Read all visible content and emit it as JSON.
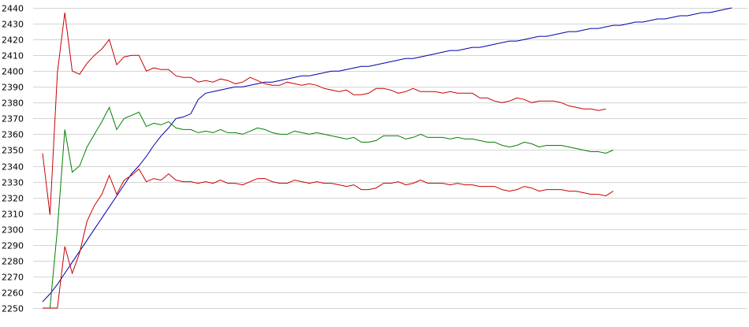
{
  "chart_data": {
    "type": "line",
    "title": "",
    "xlabel": "",
    "ylabel": "",
    "ylim": [
      2250,
      2440
    ],
    "yticks": [
      2440,
      2430,
      2420,
      2410,
      2400,
      2390,
      2380,
      2370,
      2360,
      2350,
      2340,
      2330,
      2320,
      2310,
      2300,
      2290,
      2280,
      2270,
      2260,
      2250
    ],
    "grid": true,
    "legend": "none",
    "series": [
      {
        "color": "#0000aa",
        "values": [
          2254,
          2259,
          2265,
          2272,
          2279,
          2286,
          2293,
          2300,
          2307,
          2314,
          2321,
          2328,
          2335,
          2340,
          2346,
          2353,
          2359,
          2364,
          2370,
          2371,
          2373,
          2382,
          2386,
          2387,
          2388,
          2389,
          2390,
          2390,
          2391,
          2392,
          2393,
          2393,
          2394,
          2395,
          2396,
          2397,
          2397,
          2398,
          2399,
          2400,
          2400,
          2401,
          2402,
          2403,
          2403,
          2404,
          2405,
          2406,
          2407,
          2408,
          2408,
          2409,
          2410,
          2411,
          2412,
          2413,
          2413,
          2414,
          2415,
          2415,
          2416,
          2417,
          2418,
          2419,
          2419,
          2420,
          2421,
          2422,
          2422,
          2423,
          2424,
          2425,
          2425,
          2426,
          2427,
          2427,
          2428,
          2429,
          2429,
          2430,
          2431,
          2431,
          2432,
          2433,
          2433,
          2434,
          2435,
          2435,
          2436,
          2437,
          2437,
          2438,
          2439,
          2440
        ]
      },
      {
        "color": "#cc0000",
        "values": [
          2348,
          2309,
          2399,
          2437,
          2400,
          2398,
          2405,
          2410,
          2414,
          2420,
          2404,
          2409,
          2410,
          2410,
          2400,
          2402,
          2401,
          2401,
          2397,
          2396,
          2396,
          2393,
          2394,
          2393,
          2395,
          2394,
          2392,
          2393,
          2396,
          2394,
          2392,
          2391,
          2391,
          2393,
          2392,
          2391,
          2392,
          2391,
          2389,
          2388,
          2387,
          2388,
          2385,
          2385,
          2386,
          2389,
          2389,
          2388,
          2386,
          2387,
          2389,
          2387,
          2387,
          2387,
          2386,
          2387,
          2386,
          2386,
          2386,
          2383,
          2383,
          2381,
          2380,
          2381,
          2383,
          2382,
          2380,
          2381,
          2381,
          2381,
          2380,
          2378,
          2377,
          2376,
          2376,
          2375,
          2376
        ]
      },
      {
        "color": "#008000",
        "values": [
          2250,
          2250,
          2300,
          2363,
          2336,
          2340,
          2352,
          2360,
          2368,
          2377,
          2363,
          2370,
          2372,
          2374,
          2365,
          2367,
          2366,
          2368,
          2364,
          2363,
          2363,
          2361,
          2362,
          2361,
          2363,
          2361,
          2361,
          2360,
          2362,
          2364,
          2363,
          2361,
          2360,
          2360,
          2362,
          2361,
          2360,
          2361,
          2360,
          2359,
          2358,
          2357,
          2358,
          2355,
          2355,
          2356,
          2359,
          2359,
          2359,
          2357,
          2358,
          2360,
          2358,
          2358,
          2358,
          2357,
          2358,
          2357,
          2357,
          2356,
          2355,
          2355,
          2353,
          2352,
          2353,
          2355,
          2354,
          2352,
          2353,
          2353,
          2353,
          2352,
          2351,
          2350,
          2349,
          2349,
          2348,
          2350
        ]
      },
      {
        "color": "#cc0000",
        "values": [
          2250,
          2250,
          2250,
          2289,
          2272,
          2285,
          2305,
          2315,
          2322,
          2334,
          2322,
          2331,
          2334,
          2338,
          2330,
          2332,
          2331,
          2335,
          2331,
          2330,
          2330,
          2329,
          2330,
          2329,
          2331,
          2329,
          2329,
          2328,
          2330,
          2332,
          2332,
          2330,
          2329,
          2329,
          2331,
          2330,
          2329,
          2330,
          2329,
          2329,
          2328,
          2327,
          2328,
          2325,
          2325,
          2326,
          2329,
          2329,
          2330,
          2328,
          2329,
          2331,
          2329,
          2329,
          2329,
          2328,
          2329,
          2328,
          2328,
          2327,
          2327,
          2327,
          2325,
          2324,
          2325,
          2327,
          2326,
          2324,
          2325,
          2325,
          2325,
          2324,
          2324,
          2323,
          2322,
          2322,
          2321,
          2324
        ]
      }
    ]
  }
}
